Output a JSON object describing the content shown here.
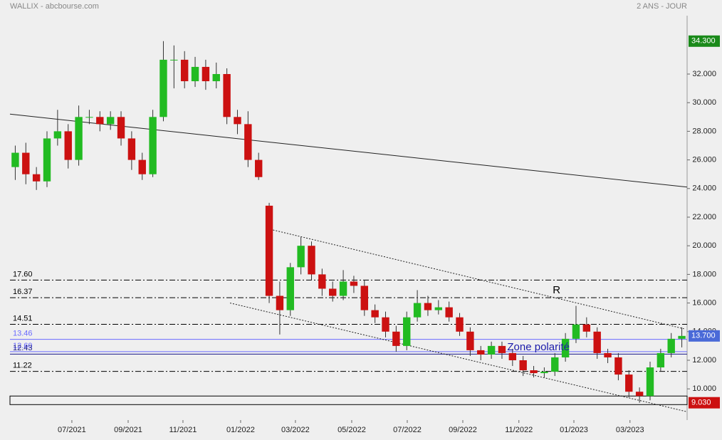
{
  "chart_data": {
    "type": "candlestick",
    "title": "WALLIX - abcbourse.com",
    "subtitle": "2 ANS - JOUR",
    "up_color": "#22bb22",
    "down_color": "#cc1111",
    "xlim": [
      0,
      64
    ],
    "xticks": [
      {
        "value": 5.85,
        "label": "07/2021"
      },
      {
        "value": 11.17,
        "label": "09/2021"
      },
      {
        "value": 16.35,
        "label": "11/2021"
      },
      {
        "value": 21.8,
        "label": "01/2022"
      },
      {
        "value": 26.98,
        "label": "03/2022"
      },
      {
        "value": 32.3,
        "label": "05/2022"
      },
      {
        "value": 37.55,
        "label": "07/2022"
      },
      {
        "value": 42.8,
        "label": "09/2022"
      },
      {
        "value": 48.1,
        "label": "11/2022"
      },
      {
        "value": 53.3,
        "label": "01/2023"
      },
      {
        "value": 58.6,
        "label": "03/2023"
      }
    ],
    "ylim": [
      7.82,
      36.08
    ],
    "yticks": [
      {
        "value": 10,
        "label": "10.000"
      },
      {
        "value": 12,
        "label": "12.000"
      },
      {
        "value": 14,
        "label": "14.000"
      },
      {
        "value": 16,
        "label": "16.000"
      },
      {
        "value": 18,
        "label": "18.000"
      },
      {
        "value": 20,
        "label": "20.000"
      },
      {
        "value": 22,
        "label": "22.000"
      },
      {
        "value": 24,
        "label": "24.000"
      },
      {
        "value": 26,
        "label": "26.000"
      },
      {
        "value": 28,
        "label": "28.000"
      },
      {
        "value": 30,
        "label": "30.000"
      },
      {
        "value": 32,
        "label": "32.000"
      }
    ],
    "open": [
      25.5,
      26.5,
      25,
      24.5,
      27.5,
      28,
      26,
      29,
      29,
      28.5,
      29,
      27.5,
      26,
      25,
      29,
      33,
      33,
      31.5,
      32.5,
      31.5,
      32,
      29,
      28.5,
      26,
      22.8,
      16.5,
      15.5,
      18.5,
      20,
      18,
      17,
      16.5,
      17.5,
      17.2,
      15.5,
      15,
      14,
      13,
      15,
      16,
      15.5,
      15.7,
      15,
      14,
      12.7,
      12.4,
      13,
      12.5,
      12,
      11.3,
      11.1,
      11.2,
      12.2,
      13.5,
      14.5,
      14,
      12.5,
      12.2,
      11,
      9.8,
      9.5,
      11.5,
      12.5,
      13.5
    ],
    "high": [
      27,
      27.2,
      25.5,
      28,
      29.5,
      28.5,
      29.8,
      29.5,
      29.4,
      29.4,
      29.4,
      28,
      26.5,
      29.5,
      34.3,
      34,
      33.6,
      33.2,
      33,
      32.8,
      32.4,
      29.5,
      29.4,
      26.5,
      23,
      17.5,
      18.8,
      20.6,
      20.3,
      18.4,
      17.5,
      18.3,
      17.9,
      17.6,
      15.9,
      15.4,
      14.4,
      15.4,
      16.9,
      16.5,
      16.2,
      16.1,
      15.3,
      14.3,
      13,
      13.3,
      13.3,
      12.8,
      12.3,
      11.6,
      11.5,
      12.5,
      13.9,
      15.8,
      15,
      14.3,
      12.8,
      12.5,
      11.3,
      10.1,
      11.9,
      12.8,
      13.9,
      14.3
    ],
    "low": [
      24.6,
      24.3,
      23.9,
      24.1,
      27,
      25.4,
      25.6,
      28.5,
      28,
      28.1,
      27,
      25.3,
      24.6,
      24.8,
      28.7,
      31,
      31,
      31.1,
      30.9,
      31,
      28.5,
      27.8,
      25.5,
      24.6,
      16,
      13.8,
      15.1,
      18,
      17.6,
      16.5,
      16.1,
      16.2,
      16.7,
      15.1,
      14.6,
      13.6,
      12.6,
      12.7,
      14.7,
      15.1,
      15.2,
      14.7,
      13.7,
      12.3,
      12,
      12.1,
      12.1,
      11.6,
      10.9,
      10.8,
      10.8,
      10.9,
      11.9,
      13.2,
      13.6,
      12.1,
      11.8,
      10.6,
      9.4,
      9.03,
      9.2,
      11.2,
      12.2,
      12.9
    ],
    "close": [
      26.5,
      25,
      24.5,
      27.5,
      28,
      26,
      29,
      29,
      28.5,
      29,
      27.5,
      26,
      25,
      29,
      33,
      33,
      31.5,
      32.5,
      31.5,
      32,
      29,
      28.5,
      26,
      24.8,
      16.5,
      15.5,
      18.5,
      20,
      18,
      17,
      16.5,
      17.5,
      17.2,
      15.5,
      15,
      14,
      13,
      15,
      16,
      15.5,
      15.7,
      15,
      14,
      12.7,
      12.4,
      13,
      12.5,
      12,
      11.3,
      11.1,
      11.2,
      12.2,
      13.5,
      14.5,
      14,
      12.5,
      12.2,
      11,
      9.8,
      9.5,
      11.5,
      12.5,
      13.5,
      13.7
    ],
    "levels": [
      {
        "value": 17.6,
        "label": "17.60",
        "style": "dashdot",
        "color": "#000000"
      },
      {
        "value": 16.37,
        "label": "16.37",
        "style": "dashdot",
        "color": "#000000"
      },
      {
        "value": 14.51,
        "label": "14.51",
        "style": "dashdot",
        "color": "#000000"
      },
      {
        "value": 13.46,
        "label": "13.46",
        "style": "solid",
        "color": "#6a6aff"
      },
      {
        "value": 12.6,
        "label": "12.60",
        "style": "solid",
        "color": "#6a6aff"
      },
      {
        "value": 12.43,
        "label": "12.43",
        "style": "solid",
        "color": "#1a1a8a"
      },
      {
        "value": 11.22,
        "label": "11.22",
        "style": "dashdot",
        "color": "#000000"
      }
    ],
    "zone": {
      "y": [
        8.9,
        9.5
      ]
    },
    "lines": [
      {
        "x": [
          0,
          64
        ],
        "y": [
          29.2,
          24.1
        ],
        "style": "solid"
      },
      {
        "x": [
          24.6,
          63.7
        ],
        "y": [
          21.15,
          14.2
        ],
        "style": "dotted"
      },
      {
        "x": [
          20.8,
          64
        ],
        "y": [
          16.0,
          8.4
        ],
        "style": "dotted"
      }
    ],
    "annotations": [
      {
        "text": "R",
        "x": 51.3,
        "y": 16.88,
        "color": "#000000"
      },
      {
        "text": "Zone polarité",
        "x": 47,
        "y": 12.9,
        "color": "#1a1aaa"
      }
    ],
    "price_labels": [
      {
        "value": 34.3,
        "label": "34.300",
        "color": "#1a8a1a"
      },
      {
        "value": 13.7,
        "label": "13.700",
        "color": "#4a6ad8"
      },
      {
        "value": 9.03,
        "label": "9.030",
        "color": "#cc1111"
      }
    ]
  }
}
